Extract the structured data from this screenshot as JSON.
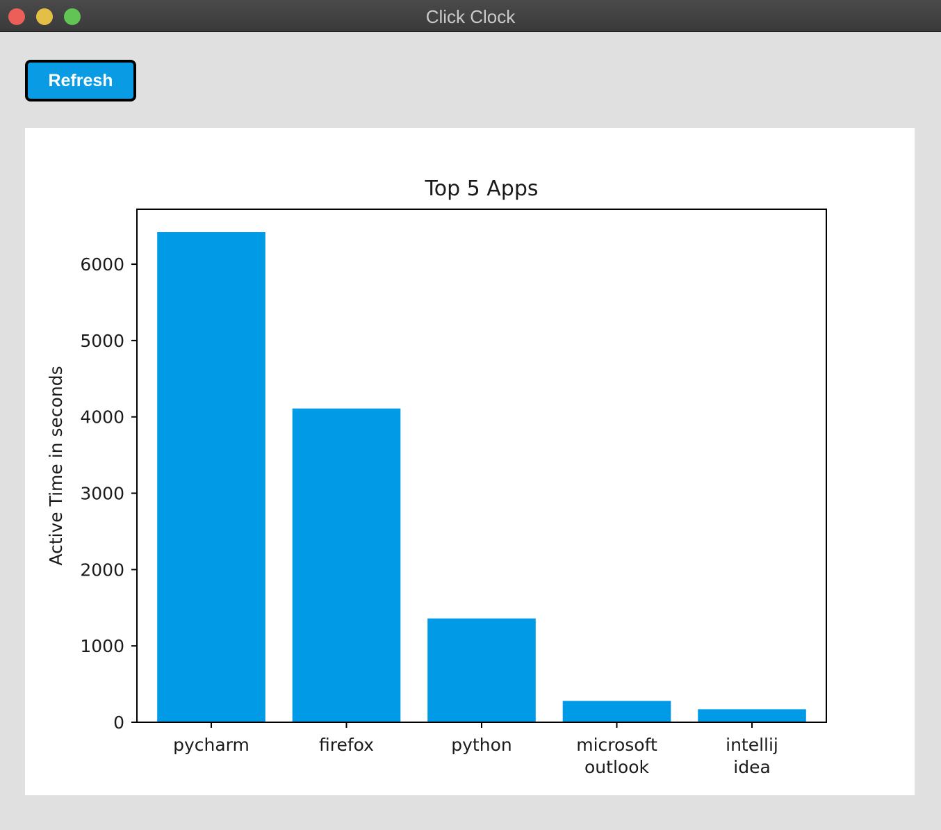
{
  "window": {
    "title": "Click Clock"
  },
  "toolbar": {
    "refresh_label": "Refresh"
  },
  "colors": {
    "accent": "#0a9be5",
    "bar": "#009ae6"
  },
  "chart_data": {
    "type": "bar",
    "title": "Top 5 Apps",
    "xlabel": "",
    "ylabel": "Active Time in seconds",
    "categories": [
      [
        "pycharm"
      ],
      [
        "firefox"
      ],
      [
        "python"
      ],
      [
        "microsoft",
        "outlook"
      ],
      [
        "intellij",
        "idea"
      ]
    ],
    "values": [
      6420,
      4110,
      1360,
      280,
      170
    ],
    "ylim": [
      0,
      6720
    ],
    "yticks": [
      0,
      1000,
      2000,
      3000,
      4000,
      5000,
      6000
    ],
    "grid": false
  }
}
